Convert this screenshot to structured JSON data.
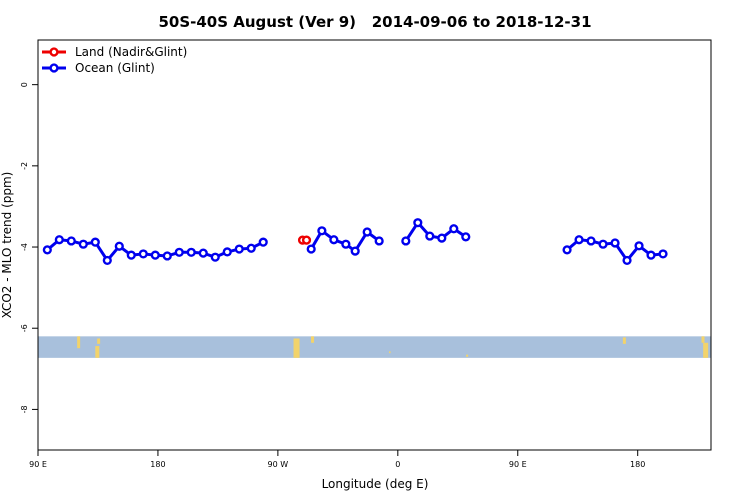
{
  "chart_data": {
    "type": "line",
    "title": "50S-40S August (Ver 9)   2014-09-06 to 2018-12-31",
    "xlabel": "Longitude (deg E)",
    "ylabel": "XCO2 - MLO trend (ppm)",
    "xlim": [
      90,
      595
    ],
    "ylim": [
      -9,
      1.1
    ],
    "x_ticks": [
      {
        "value": 90,
        "label": "90 E"
      },
      {
        "value": 180,
        "label": "180"
      },
      {
        "value": 270,
        "label": "90 W"
      },
      {
        "value": 360,
        "label": "0"
      },
      {
        "value": 450,
        "label": "90 E"
      },
      {
        "value": 540,
        "label": "180"
      }
    ],
    "y_ticks": [
      {
        "value": 0,
        "label": "0"
      },
      {
        "value": -2,
        "label": "-2"
      },
      {
        "value": -4,
        "label": "-4"
      },
      {
        "value": -6,
        "label": "-6"
      },
      {
        "value": -8,
        "label": "-8"
      }
    ],
    "legend_position": "top-left",
    "grid": false,
    "series": [
      {
        "name": "Land (Nadir&Glint)",
        "color": "#ee0000",
        "segments": [
          [
            [
              288.5,
              -3.83
            ],
            [
              291.5,
              -3.83
            ]
          ]
        ]
      },
      {
        "name": "Ocean (Glint)",
        "color": "#0000ee",
        "segments": [
          [
            [
              97,
              -4.07
            ],
            [
              106,
              -3.82
            ],
            [
              115,
              -3.85
            ],
            [
              124,
              -3.93
            ],
            [
              133,
              -3.88
            ],
            [
              142,
              -4.33
            ],
            [
              151,
              -3.98
            ],
            [
              160,
              -4.2
            ],
            [
              169,
              -4.17
            ],
            [
              178,
              -4.2
            ],
            [
              187,
              -4.22
            ],
            [
              196,
              -4.13
            ],
            [
              205,
              -4.13
            ],
            [
              214,
              -4.15
            ],
            [
              223,
              -4.25
            ],
            [
              232,
              -4.12
            ],
            [
              241,
              -4.05
            ],
            [
              250,
              -4.03
            ],
            [
              259,
              -3.88
            ]
          ],
          [
            [
              295,
              -4.05
            ],
            [
              303,
              -3.6
            ],
            [
              312,
              -3.82
            ],
            [
              321,
              -3.93
            ],
            [
              328,
              -4.1
            ],
            [
              337,
              -3.63
            ],
            [
              346,
              -3.85
            ]
          ],
          [
            [
              366,
              -3.85
            ],
            [
              375,
              -3.4
            ],
            [
              384,
              -3.73
            ],
            [
              393,
              -3.78
            ],
            [
              402,
              -3.55
            ],
            [
              411,
              -3.75
            ]
          ],
          [
            [
              487,
              -4.07
            ],
            [
              496,
              -3.82
            ],
            [
              505,
              -3.85
            ],
            [
              514,
              -3.93
            ],
            [
              523,
              -3.9
            ],
            [
              532,
              -4.33
            ],
            [
              541,
              -3.97
            ],
            [
              550,
              -4.2
            ],
            [
              559,
              -4.17
            ]
          ]
        ]
      }
    ],
    "map_strip": {
      "y_range": [
        -6.73,
        -6.2
      ],
      "ocean_color": "#a8c0dc",
      "land_color": "#f2d36b"
    }
  }
}
